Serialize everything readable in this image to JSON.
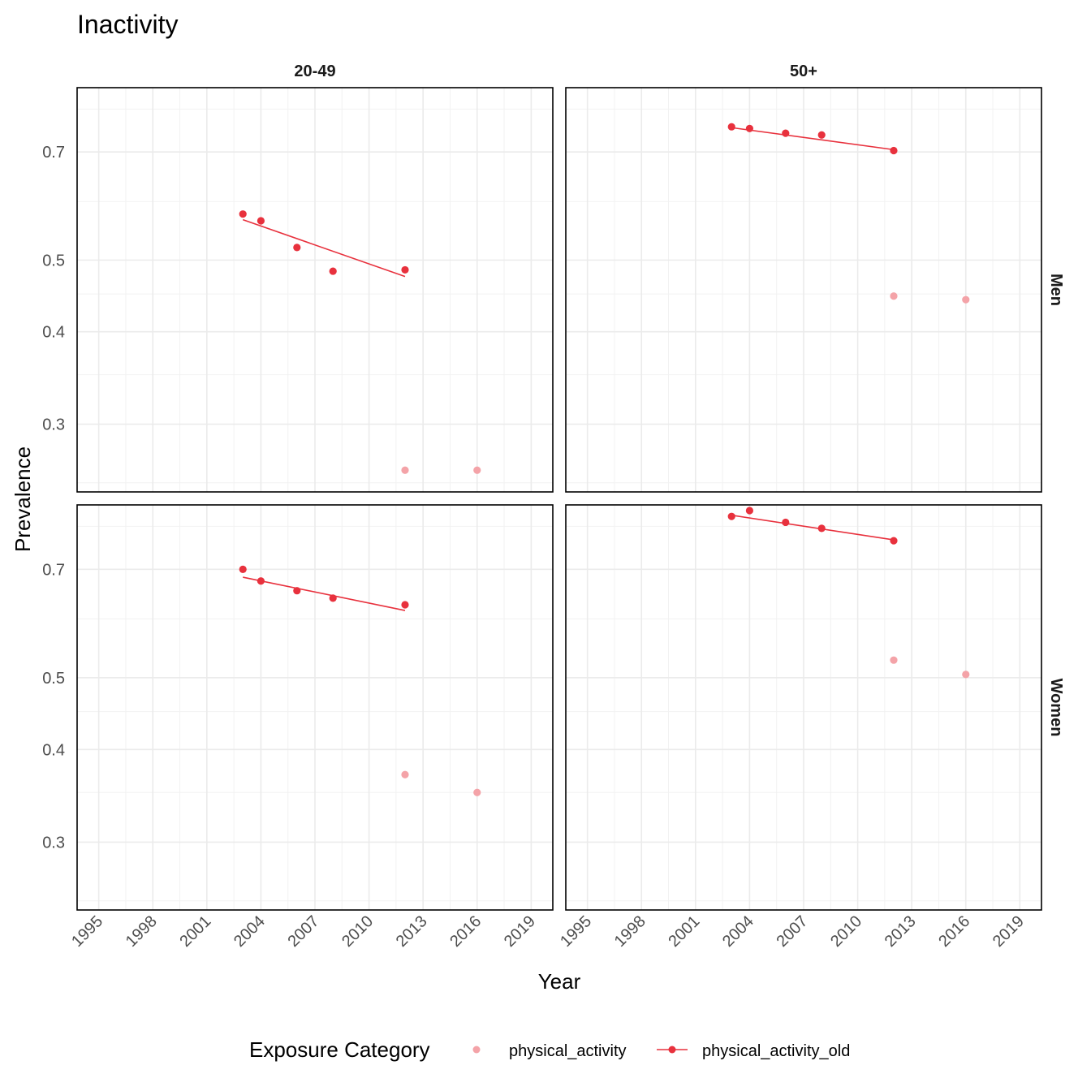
{
  "chart_data": {
    "type": "scatter",
    "title": "Inactivity",
    "xlabel": "Year",
    "ylabel": "Prevalence",
    "x_ticks": [
      1995,
      1998,
      2001,
      2004,
      2007,
      2010,
      2013,
      2016,
      2019
    ],
    "y_ticks": [
      0.3,
      0.4,
      0.5,
      0.7
    ],
    "y_tick_labels": [
      "0.3",
      "0.4",
      "0.5",
      "0.7"
    ],
    "y_scale": "log",
    "xlim": [
      1993.8,
      2020.2
    ],
    "ylim": [
      0.243,
      0.855
    ],
    "grid": true,
    "facet_cols": [
      "20-49",
      "50+"
    ],
    "facet_rows": [
      "Men",
      "Women"
    ],
    "legend": {
      "title": "Exposure Category",
      "position": "bottom",
      "entries": [
        {
          "label": "physical_activity",
          "color": "#F4A3A8",
          "style": "point"
        },
        {
          "label": "physical_activity_old",
          "color": "#E8313D",
          "style": "point-line"
        }
      ]
    },
    "panels": [
      {
        "row": "Men",
        "col": "20-49",
        "series": [
          {
            "name": "physical_activity",
            "x": [
              2012,
              2016
            ],
            "y": [
              0.26,
              0.26
            ]
          },
          {
            "name": "physical_activity_old",
            "x": [
              2003,
              2004,
              2006,
              2008,
              2012
            ],
            "y": [
              0.577,
              0.565,
              0.52,
              0.483,
              0.485
            ],
            "trend": {
              "x": [
                2003,
                2012
              ],
              "y": [
                0.567,
                0.475
              ]
            }
          }
        ]
      },
      {
        "row": "Men",
        "col": "50+",
        "series": [
          {
            "name": "physical_activity",
            "x": [
              2012,
              2016
            ],
            "y": [
              0.447,
              0.442
            ]
          },
          {
            "name": "physical_activity_old",
            "x": [
              2003,
              2004,
              2006,
              2008,
              2012
            ],
            "y": [
              0.757,
              0.753,
              0.742,
              0.738,
              0.703
            ],
            "trend": {
              "x": [
                2003,
                2012
              ],
              "y": [
                0.755,
                0.705
              ]
            }
          }
        ]
      },
      {
        "row": "Women",
        "col": "20-49",
        "series": [
          {
            "name": "physical_activity",
            "x": [
              2012,
              2016
            ],
            "y": [
              0.37,
              0.35
            ]
          },
          {
            "name": "physical_activity_old",
            "x": [
              2003,
              2004,
              2006,
              2008,
              2012
            ],
            "y": [
              0.7,
              0.675,
              0.655,
              0.64,
              0.627
            ],
            "trend": {
              "x": [
                2003,
                2012
              ],
              "y": [
                0.683,
                0.616
              ]
            }
          }
        ]
      },
      {
        "row": "Women",
        "col": "50+",
        "series": [
          {
            "name": "physical_activity",
            "x": [
              2012,
              2016
            ],
            "y": [
              0.528,
              0.505
            ]
          },
          {
            "name": "physical_activity_old",
            "x": [
              2003,
              2004,
              2006,
              2008,
              2012
            ],
            "y": [
              0.825,
              0.84,
              0.81,
              0.795,
              0.765
            ],
            "trend": {
              "x": [
                2003,
                2012
              ],
              "y": [
                0.828,
                0.767
              ]
            }
          }
        ]
      }
    ]
  }
}
